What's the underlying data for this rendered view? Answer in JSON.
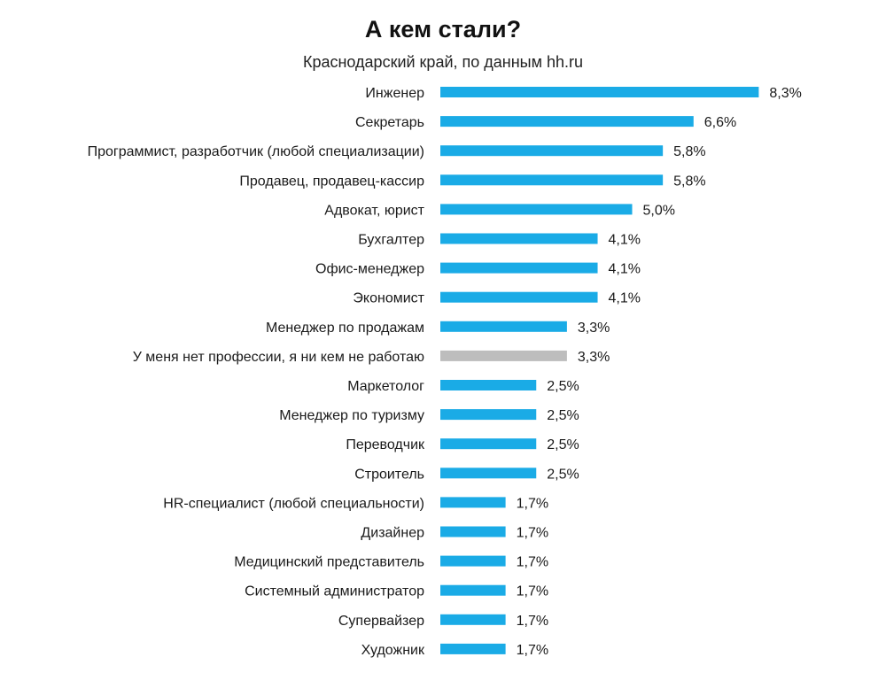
{
  "chart_data": {
    "type": "bar",
    "orientation": "horizontal",
    "title": "А кем стали?",
    "subtitle": "Краснодарский край,  по данным hh.ru",
    "categories": [
      "Инженер",
      "Секретарь",
      "Программист, разработчик (любой специализации)",
      "Продавец, продавец-кассир",
      "Адвокат, юрист",
      "Бухгалтер",
      "Офис-менеджер",
      "Экономист",
      "Менеджер по продажам",
      "У меня нет профессии, я ни кем не работаю",
      "Маркетолог",
      "Менеджер по туризму",
      "Переводчик",
      "Строитель",
      "HR-специалист (любой специальности)",
      "Дизайнер",
      "Медицинский представитель",
      "Системный администратор",
      "Супервайзер",
      "Художник"
    ],
    "values": [
      8.3,
      6.6,
      5.8,
      5.8,
      5.0,
      4.1,
      4.1,
      4.1,
      3.3,
      3.3,
      2.5,
      2.5,
      2.5,
      2.5,
      1.7,
      1.7,
      1.7,
      1.7,
      1.7,
      1.7
    ],
    "value_labels": [
      "8,3%",
      "6,6%",
      "5,8%",
      "5,8%",
      "5,0%",
      "4,1%",
      "4,1%",
      "4,1%",
      "3,3%",
      "3,3%",
      "2,5%",
      "2,5%",
      "2,5%",
      "2,5%",
      "1,7%",
      "1,7%",
      "1,7%",
      "1,7%",
      "1,7%",
      "1,7%"
    ],
    "highlight_index": 9,
    "colors": {
      "bar": "#1aabe6",
      "highlight": "#bdbdbd"
    },
    "grid": false,
    "legend": "none"
  }
}
